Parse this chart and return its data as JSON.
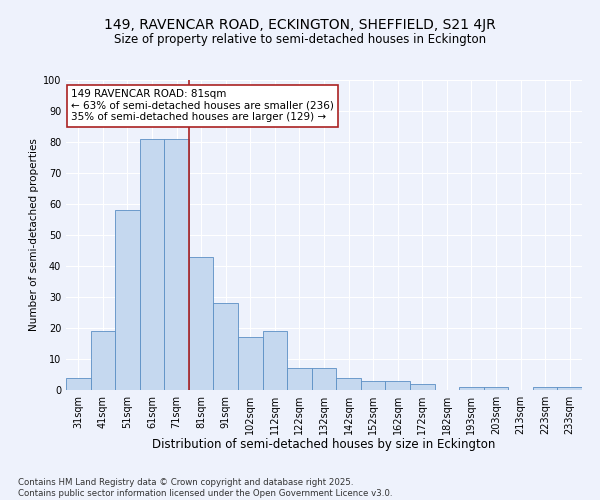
{
  "title": "149, RAVENCAR ROAD, ECKINGTON, SHEFFIELD, S21 4JR",
  "subtitle": "Size of property relative to semi-detached houses in Eckington",
  "xlabel": "Distribution of semi-detached houses by size in Eckington",
  "ylabel": "Number of semi-detached properties",
  "categories": [
    "31sqm",
    "41sqm",
    "51sqm",
    "61sqm",
    "71sqm",
    "81sqm",
    "91sqm",
    "102sqm",
    "112sqm",
    "122sqm",
    "132sqm",
    "142sqm",
    "152sqm",
    "162sqm",
    "172sqm",
    "182sqm",
    "193sqm",
    "203sqm",
    "213sqm",
    "223sqm",
    "233sqm"
  ],
  "values": [
    4,
    19,
    58,
    81,
    81,
    43,
    28,
    17,
    19,
    7,
    7,
    4,
    3,
    3,
    2,
    0,
    1,
    1,
    0,
    1,
    1
  ],
  "highlight_line_index": 5,
  "bar_color": "#c5d8ef",
  "bar_edge_color": "#5b8fc4",
  "highlight_line_color": "#aa2222",
  "annotation_box_facecolor": "#ffffff",
  "annotation_border_color": "#aa2222",
  "annotation_text": "149 RAVENCAR ROAD: 81sqm\n← 63% of semi-detached houses are smaller (236)\n35% of semi-detached houses are larger (129) →",
  "annotation_fontsize": 7.5,
  "title_fontsize": 10,
  "subtitle_fontsize": 8.5,
  "xlabel_fontsize": 8.5,
  "ylabel_fontsize": 7.5,
  "tick_fontsize": 7,
  "footer_text": "Contains HM Land Registry data © Crown copyright and database right 2025.\nContains public sector information licensed under the Open Government Licence v3.0.",
  "background_color": "#eef2fc",
  "grid_color": "#ffffff",
  "ylim": [
    0,
    100
  ],
  "yticks": [
    0,
    10,
    20,
    30,
    40,
    50,
    60,
    70,
    80,
    90,
    100
  ]
}
